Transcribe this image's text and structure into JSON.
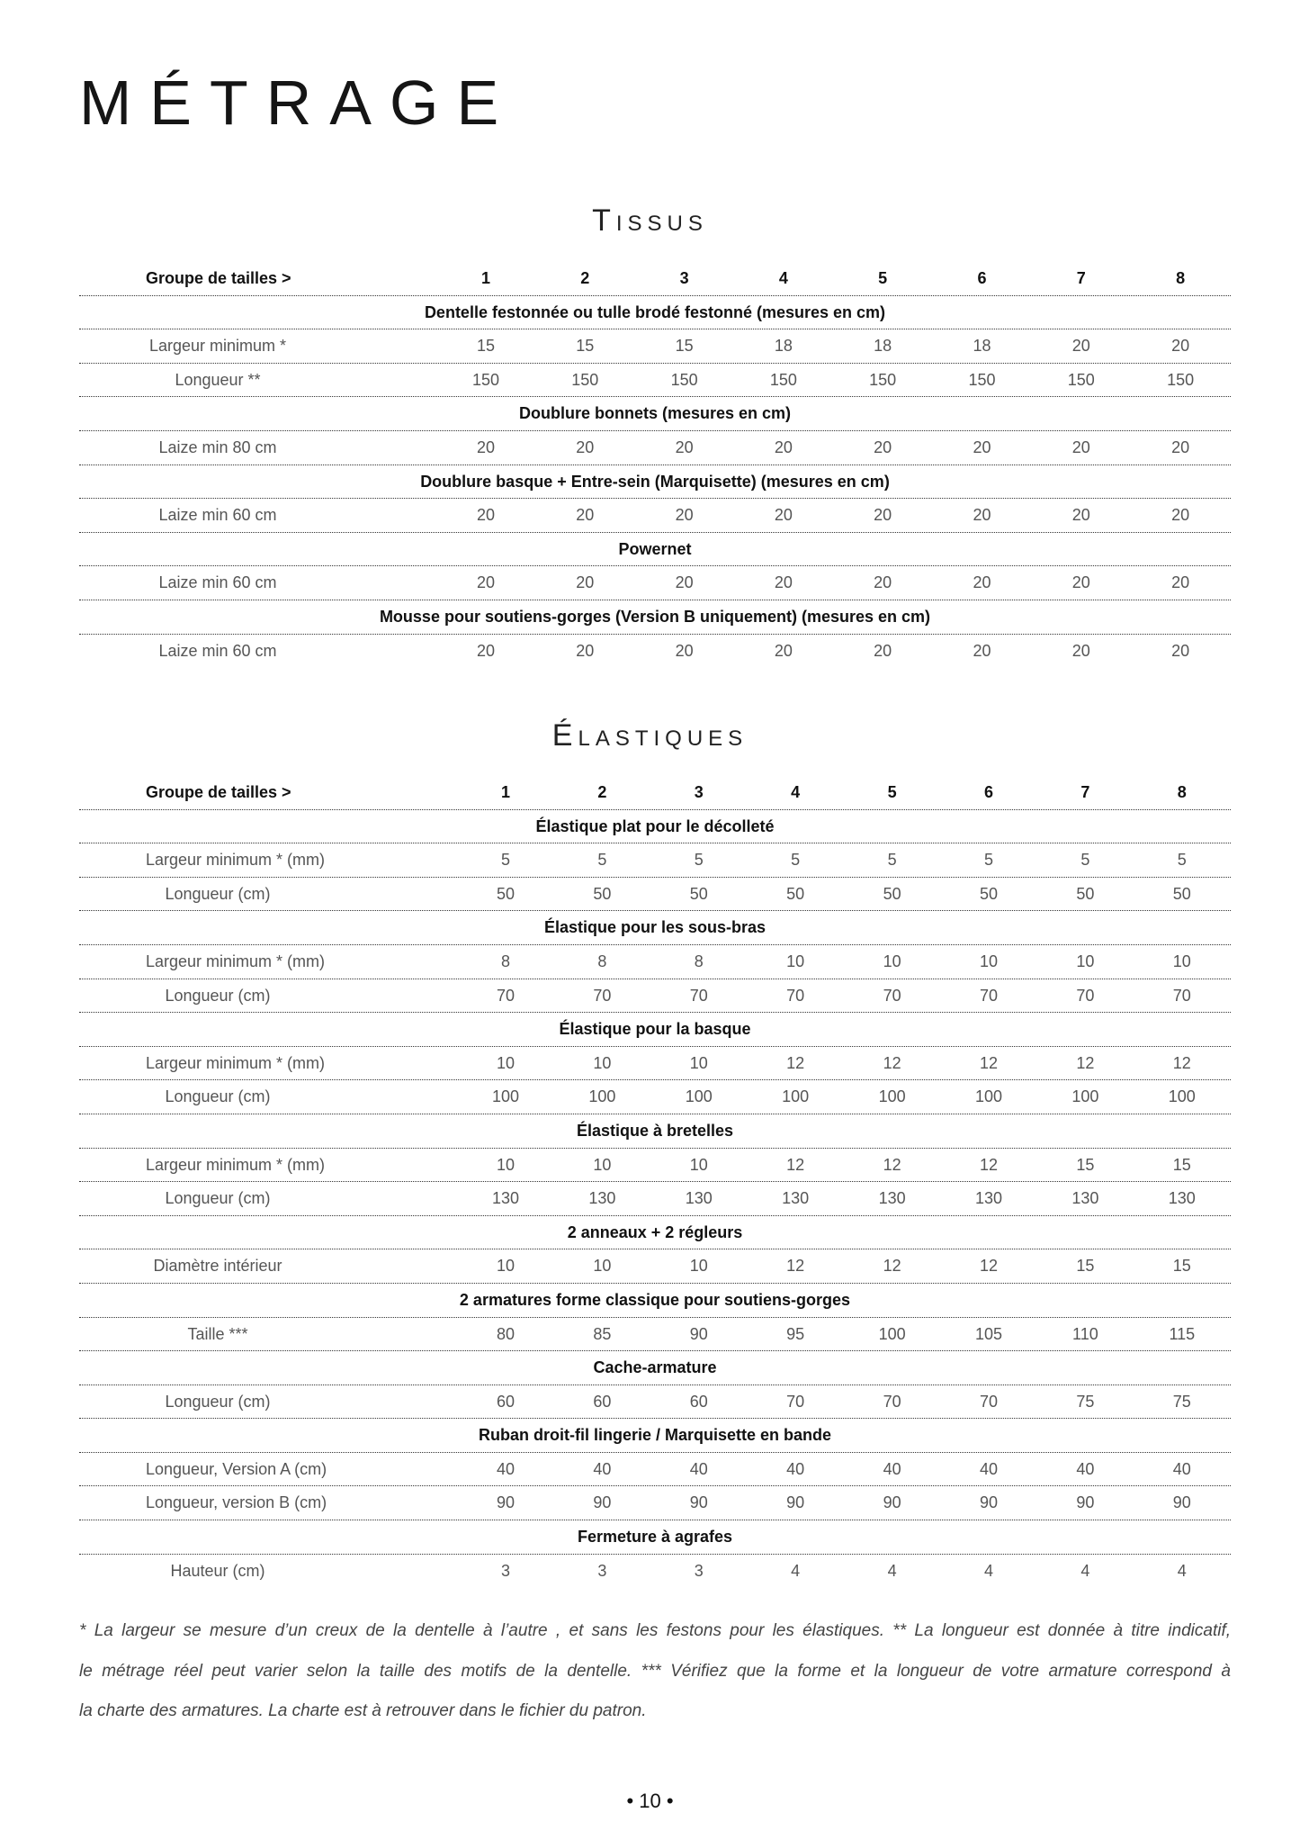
{
  "title": "MÉTRAGE",
  "tables": [
    {
      "title": "Tissus",
      "header_label": "Groupe de tailles >",
      "columns": [
        "1",
        "2",
        "3",
        "4",
        "5",
        "6",
        "7",
        "8"
      ],
      "sections": [
        {
          "title": "Dentelle festonnée ou tulle brodé festonné (mesures en cm)",
          "rows": [
            {
              "label": "Largeur minimum *",
              "values": [
                "15",
                "15",
                "15",
                "18",
                "18",
                "18",
                "20",
                "20"
              ]
            },
            {
              "label": "Longueur **",
              "values": [
                "150",
                "150",
                "150",
                "150",
                "150",
                "150",
                "150",
                "150"
              ]
            }
          ]
        },
        {
          "title": "Doublure bonnets (mesures en cm)",
          "rows": [
            {
              "label": "Laize min 80 cm",
              "values": [
                "20",
                "20",
                "20",
                "20",
                "20",
                "20",
                "20",
                "20"
              ]
            }
          ]
        },
        {
          "title": "Doublure basque + Entre-sein (Marquisette) (mesures en cm)",
          "rows": [
            {
              "label": "Laize min 60 cm",
              "values": [
                "20",
                "20",
                "20",
                "20",
                "20",
                "20",
                "20",
                "20"
              ]
            }
          ]
        },
        {
          "title": "Powernet",
          "rows": [
            {
              "label": "Laize min 60 cm",
              "values": [
                "20",
                "20",
                "20",
                "20",
                "20",
                "20",
                "20",
                "20"
              ]
            }
          ]
        },
        {
          "title": "Mousse pour soutiens-gorges (Version B uniquement)  (mesures en cm)",
          "rows": [
            {
              "label": "Laize min 60 cm",
              "values": [
                "20",
                "20",
                "20",
                "20",
                "20",
                "20",
                "20",
                "20"
              ]
            }
          ]
        }
      ]
    },
    {
      "title": "Élastiques",
      "header_label": "Groupe de tailles >",
      "columns": [
        "1",
        "2",
        "3",
        "4",
        "5",
        "6",
        "7",
        "8"
      ],
      "sections": [
        {
          "title": "Élastique plat pour le décolleté",
          "rows": [
            {
              "label": "Largeur minimum * (mm)",
              "values": [
                "5",
                "5",
                "5",
                "5",
                "5",
                "5",
                "5",
                "5"
              ]
            },
            {
              "label": "Longueur (cm)",
              "values": [
                "50",
                "50",
                "50",
                "50",
                "50",
                "50",
                "50",
                "50"
              ]
            }
          ]
        },
        {
          "title": "Élastique pour les sous-bras",
          "rows": [
            {
              "label": "Largeur minimum * (mm)",
              "values": [
                "8",
                "8",
                "8",
                "10",
                "10",
                "10",
                "10",
                "10"
              ]
            },
            {
              "label": "Longueur (cm)",
              "values": [
                "70",
                "70",
                "70",
                "70",
                "70",
                "70",
                "70",
                "70"
              ]
            }
          ]
        },
        {
          "title": "Élastique pour la basque",
          "rows": [
            {
              "label": "Largeur minimum * (mm)",
              "values": [
                "10",
                "10",
                "10",
                "12",
                "12",
                "12",
                "12",
                "12"
              ]
            },
            {
              "label": "Longueur (cm)",
              "values": [
                "100",
                "100",
                "100",
                "100",
                "100",
                "100",
                "100",
                "100"
              ]
            }
          ]
        },
        {
          "title": "Élastique à bretelles",
          "rows": [
            {
              "label": "Largeur minimum * (mm)",
              "values": [
                "10",
                "10",
                "10",
                "12",
                "12",
                "12",
                "15",
                "15"
              ]
            },
            {
              "label": "Longueur (cm)",
              "values": [
                "130",
                "130",
                "130",
                "130",
                "130",
                "130",
                "130",
                "130"
              ]
            }
          ]
        },
        {
          "title": "2 anneaux + 2 régleurs",
          "rows": [
            {
              "label": "Diamètre intérieur",
              "values": [
                "10",
                "10",
                "10",
                "12",
                "12",
                "12",
                "15",
                "15"
              ]
            }
          ]
        },
        {
          "title": "2 armatures forme classique pour soutiens-gorges",
          "rows": [
            {
              "label": "Taille ***",
              "values": [
                "80",
                "85",
                "90",
                "95",
                "100",
                "105",
                "110",
                "115"
              ]
            }
          ]
        },
        {
          "title": "Cache-armature",
          "rows": [
            {
              "label": "Longueur (cm)",
              "values": [
                "60",
                "60",
                "60",
                "70",
                "70",
                "70",
                "75",
                "75"
              ]
            }
          ]
        },
        {
          "title": "Ruban droit-fil lingerie / Marquisette en bande",
          "rows": [
            {
              "label": "Longueur, Version A  (cm)",
              "values": [
                "40",
                "40",
                "40",
                "40",
                "40",
                "40",
                "40",
                "40"
              ]
            },
            {
              "label": "Longueur, version B (cm)",
              "values": [
                "90",
                "90",
                "90",
                "90",
                "90",
                "90",
                "90",
                "90"
              ]
            }
          ]
        },
        {
          "title": "Fermeture à agrafes",
          "rows": [
            {
              "label": "Hauteur (cm)",
              "values": [
                "3",
                "3",
                "3",
                "4",
                "4",
                "4",
                "4",
                "4"
              ]
            }
          ]
        }
      ]
    }
  ],
  "notes": [
    "* La largeur se mesure d’un creux de la dentelle à l’autre , et sans les festons pour les élastiques. ** La longueur est donnée à titre indicatif,",
    "le métrage réel peut varier selon la taille des motifs de la dentelle. *** Vérifiez que la forme et la longueur de votre armature correspond à",
    "la charte des armatures. La charte est à retrouver dans le fichier du patron."
  ],
  "page_number": "• 10 •"
}
